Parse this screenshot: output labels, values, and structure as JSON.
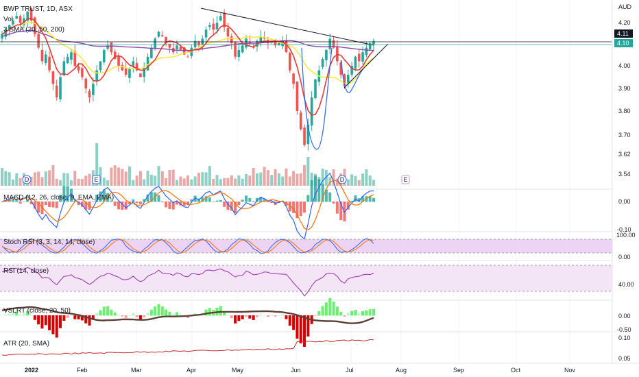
{
  "header": {
    "symbol_line": "BWP TRUST, 1D, ASX",
    "vol_label": "Vol",
    "sma_label": "3 SMA (20, 50, 200)"
  },
  "price_axis": {
    "currency": "AUD",
    "ticks": [
      "4.20",
      "4.00",
      "3.90",
      "3.80",
      "3.70",
      "3.62",
      "3.54"
    ],
    "last_price_black": "4.11",
    "last_price_green": "4.10"
  },
  "months": [
    "2022",
    "Feb",
    "Mar",
    "Apr",
    "May",
    "Jun",
    "Jul",
    "Aug",
    "Sep",
    "Oct",
    "Nov"
  ],
  "event_markers": [
    "D",
    "E",
    "D",
    "E"
  ],
  "panels": {
    "macd": {
      "label": "MACD (12, 26, close, 9, EMA, EMA)",
      "ticks": [
        "0.00",
        "-0.10"
      ]
    },
    "stoch": {
      "label": "Stoch RSI (3, 3, 14, 14, close)",
      "ticks": [
        "100.00",
        "0.00"
      ]
    },
    "rsi": {
      "label": "RSI (14, close)",
      "ticks": [
        "40.00"
      ]
    },
    "vslrt": {
      "label": "VSLRT (close, 20, 50)",
      "ticks": [
        "0.00",
        "-0.50"
      ]
    },
    "atr": {
      "label": "ATR (20, SMA)",
      "ticks": [
        "0.10",
        "0.05"
      ]
    }
  },
  "colors": {
    "up": "#26a69a",
    "down": "#ef5350",
    "sma20": "#e53935",
    "sma50": "#f7ea3c",
    "sma200": "#8e44ad",
    "macd_line": "#2962ff",
    "signal_line": "#ff6d00",
    "stoch_band": "#e1bee7",
    "rsi_line": "#9c27b0",
    "atr_line": "#c62828"
  },
  "chart_data": {
    "type": "candlestick",
    "x_range": [
      "2022-01-03",
      "2022-11-30"
    ],
    "y_range": [
      3.5,
      4.3
    ],
    "closes": [
      4.14,
      4.16,
      4.18,
      4.2,
      4.22,
      4.19,
      4.21,
      4.24,
      4.2,
      4.14,
      4.08,
      4.02,
      4.05,
      3.98,
      3.92,
      3.86,
      3.95,
      4.02,
      4.04,
      4.06,
      4.0,
      3.98,
      3.95,
      3.9,
      3.86,
      3.92,
      3.98,
      4.02,
      4.07,
      4.09,
      4.06,
      4.03,
      4.0,
      3.98,
      3.96,
      3.99,
      4.02,
      3.98,
      3.95,
      3.99,
      4.04,
      4.08,
      4.12,
      4.15,
      4.13,
      4.1,
      4.08,
      4.06,
      4.09,
      4.07,
      4.05,
      4.04,
      4.08,
      4.11,
      4.09,
      4.12,
      4.16,
      4.18,
      4.16,
      4.19,
      4.22,
      4.17,
      4.13,
      4.1,
      4.04,
      4.07,
      4.09,
      4.12,
      4.1,
      4.08,
      4.11,
      4.13,
      4.12,
      4.1,
      4.11,
      4.09,
      4.1,
      4.11,
      4.06,
      3.98,
      3.92,
      3.8,
      3.72,
      3.65,
      3.74,
      3.86,
      3.94,
      3.98,
      4.03,
      4.07,
      4.12,
      4.08,
      4.02,
      3.96,
      3.91,
      3.96,
      4.0,
      4.04,
      4.02,
      4.06,
      4.08,
      4.1,
      4.11
    ],
    "sma20": "red moving average",
    "volume_scale": "relative",
    "indicators": [
      "MACD",
      "Stoch RSI",
      "RSI",
      "VSLRT",
      "ATR"
    ]
  }
}
